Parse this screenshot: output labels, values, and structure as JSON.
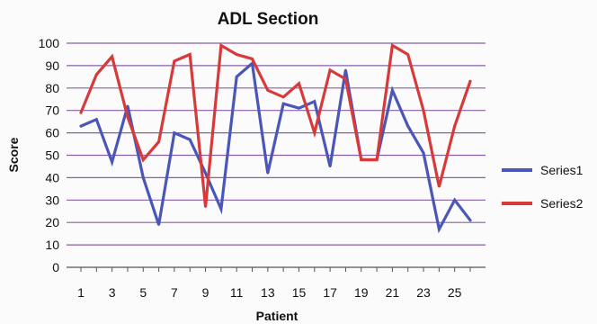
{
  "chart_data": {
    "type": "line",
    "title": "ADL Section",
    "xlabel": "Patient",
    "ylabel": "Score",
    "x": [
      1,
      2,
      3,
      4,
      5,
      6,
      7,
      8,
      9,
      10,
      11,
      12,
      13,
      14,
      15,
      16,
      17,
      18,
      19,
      20,
      21,
      22,
      23,
      24,
      25,
      26
    ],
    "x_tick_labels": [
      "1",
      "3",
      "5",
      "7",
      "9",
      "11",
      "13",
      "15",
      "17",
      "19",
      "21",
      "23",
      "25"
    ],
    "ylim": [
      0,
      100
    ],
    "y_ticks": [
      0,
      10,
      20,
      30,
      40,
      50,
      60,
      70,
      80,
      90,
      100
    ],
    "grid": true,
    "legend_position": "right",
    "series": [
      {
        "name": "Series1",
        "color": "#4a57b8",
        "values": [
          63,
          66,
          47,
          72,
          40,
          19,
          60,
          57,
          42,
          26,
          85,
          91,
          42,
          73,
          71,
          74,
          45,
          88,
          48,
          48,
          79,
          63,
          51,
          17,
          30,
          21
        ]
      },
      {
        "name": "Series2",
        "color": "#d63a3a",
        "values": [
          69,
          86,
          94,
          67,
          48,
          56,
          92,
          95,
          27,
          99,
          95,
          93,
          79,
          76,
          82,
          60,
          88,
          84,
          48,
          48,
          99,
          95,
          70,
          36,
          63,
          83
        ]
      }
    ]
  }
}
